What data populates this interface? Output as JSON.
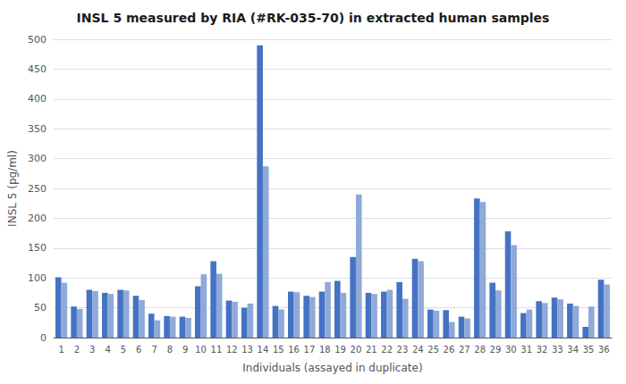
{
  "chart_data": {
    "type": "bar",
    "title": "INSL 5 measured by RIA (#RK-035-70) in extracted human samples",
    "xlabel": "Individuals (assayed in duplicate)",
    "ylabel": "INSL 5 (pg/ml)",
    "categories": [
      "1",
      "2",
      "3",
      "4",
      "5",
      "6",
      "7",
      "8",
      "9",
      "10",
      "11",
      "12",
      "13",
      "14",
      "15",
      "16",
      "17",
      "18",
      "19",
      "20",
      "21",
      "22",
      "23",
      "24",
      "25",
      "26",
      "27",
      "28",
      "29",
      "30",
      "31",
      "32",
      "33",
      "34",
      "35",
      "36"
    ],
    "series": [
      {
        "color": "#4472C4",
        "values": [
          101,
          52,
          80,
          75,
          80,
          70,
          40,
          36,
          35,
          86,
          128,
          62,
          50,
          490,
          53,
          77,
          70,
          77,
          95,
          135,
          75,
          77,
          93,
          132,
          47,
          46,
          35,
          233,
          92,
          178,
          41,
          61,
          67,
          57,
          18,
          97
        ]
      },
      {
        "color": "#8FA9D8",
        "values": [
          92,
          48,
          78,
          73,
          79,
          63,
          29,
          35,
          33,
          106,
          107,
          60,
          57,
          287,
          47,
          76,
          68,
          93,
          75,
          240,
          73,
          80,
          65,
          128,
          45,
          26,
          32,
          227,
          79,
          155,
          47,
          58,
          64,
          53,
          52,
          89
        ]
      }
    ],
    "ylim": [
      0,
      500
    ],
    "yticks": [
      0,
      50,
      100,
      150,
      200,
      250,
      300,
      350,
      400,
      450,
      500
    ],
    "grid": true
  }
}
